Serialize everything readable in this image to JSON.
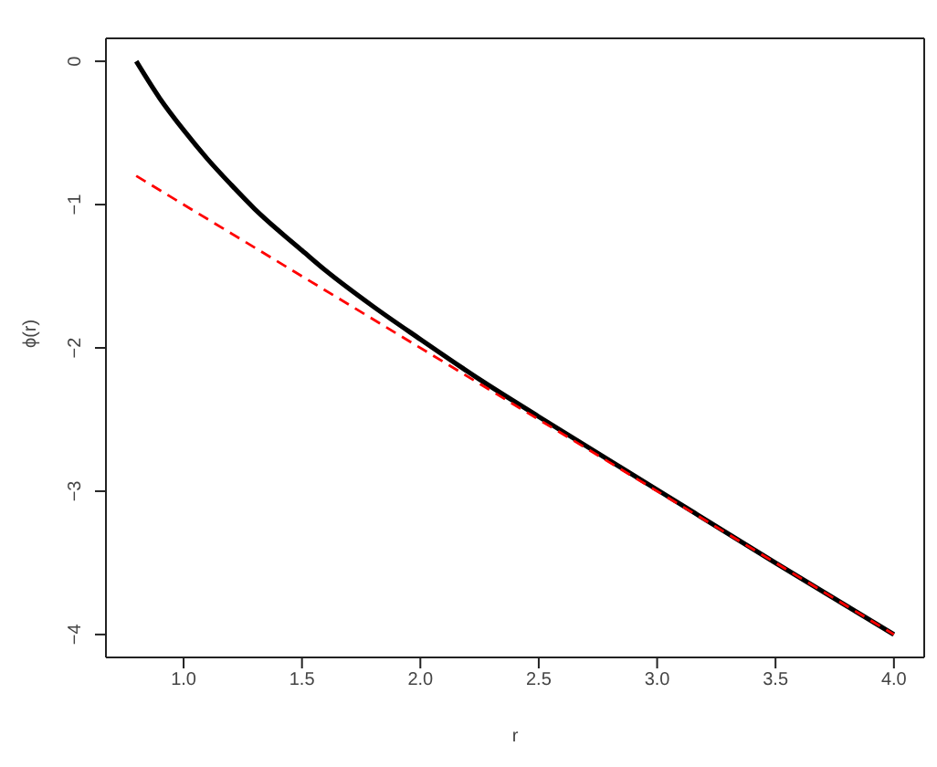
{
  "chart_data": {
    "type": "line",
    "xlabel": "r",
    "ylabel": "ϕ(r)",
    "xlim": [
      0.672,
      4.128
    ],
    "xticks": [
      {
        "value": 1,
        "label": "1.0"
      },
      {
        "value": 1.5,
        "label": "1.5"
      },
      {
        "value": 2,
        "label": "2.0"
      },
      {
        "value": 2.5,
        "label": "2.5"
      },
      {
        "value": 3,
        "label": "3.0"
      },
      {
        "value": 3.5,
        "label": "3.5"
      },
      {
        "value": 4,
        "label": "4.0"
      }
    ],
    "ylim": [
      -4.16,
      0.16
    ],
    "yticks": [
      {
        "value": 0,
        "label": "0"
      },
      {
        "value": -1,
        "label": "−1"
      },
      {
        "value": -2,
        "label": "−2"
      },
      {
        "value": -3,
        "label": "−3"
      },
      {
        "value": -4,
        "label": "−4"
      }
    ],
    "grid": false,
    "legend": false,
    "marker": "none",
    "series": [
      {
        "color": "#000000",
        "line_style": "solid",
        "x": [
          0.8,
          0.9,
          1.0,
          1.1,
          1.2,
          1.3,
          1.4,
          1.5,
          1.6,
          1.8,
          2.0,
          2.25,
          2.5,
          3.0,
          3.5,
          4.0
        ],
        "values": [
          0,
          -0.26,
          -0.48,
          -0.68,
          -0.86,
          -1.03,
          -1.18,
          -1.32,
          -1.46,
          -1.71,
          -1.94,
          -2.22,
          -2.48,
          -2.99,
          -3.5,
          -4
        ]
      },
      {
        "color": "#ff0000",
        "line_style": "dashed",
        "x": [
          0.8,
          4.0
        ],
        "values": [
          -0.8,
          -4
        ]
      }
    ]
  }
}
